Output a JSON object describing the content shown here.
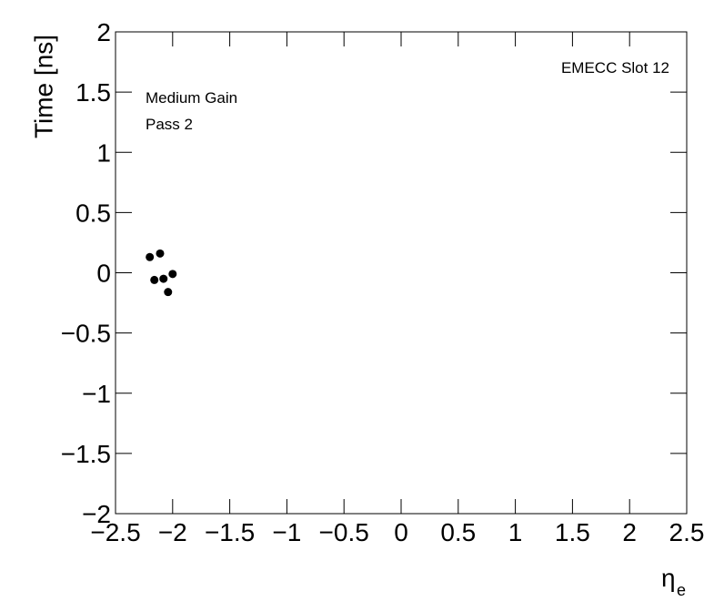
{
  "chart_data": {
    "type": "scatter",
    "ylabel": "Time [ns]",
    "xlabel": "η",
    "xlabel_subscript": "e",
    "annotations": [
      "EMECC Slot 12",
      "Medium Gain",
      "Pass 2"
    ],
    "series": [
      {
        "color": "#000000",
        "x": [
          -2.2,
          -2.11,
          -2.16,
          -2.08,
          -2.0,
          -2.04
        ],
        "values": [
          0.13,
          0.16,
          -0.06,
          -0.05,
          -0.01,
          -0.16
        ]
      }
    ],
    "xlim": [
      -2.5,
      2.5
    ],
    "xticks": [
      {
        "value": -2.5,
        "label": "−2.5"
      },
      {
        "value": -2,
        "label": "−2"
      },
      {
        "value": -1.5,
        "label": "−1.5"
      },
      {
        "value": -1,
        "label": "−1"
      },
      {
        "value": -0.5,
        "label": "−0.5"
      },
      0,
      0.5,
      1,
      1.5,
      2,
      2.5
    ],
    "ylim": [
      -2,
      2
    ],
    "yticks": [
      {
        "value": -2,
        "label": "−2"
      },
      {
        "value": -1.5,
        "label": "−1.5"
      },
      {
        "value": -1,
        "label": "−1"
      },
      {
        "value": -0.5,
        "label": "−0.5"
      },
      0,
      0.5,
      1,
      1.5,
      2
    ]
  }
}
